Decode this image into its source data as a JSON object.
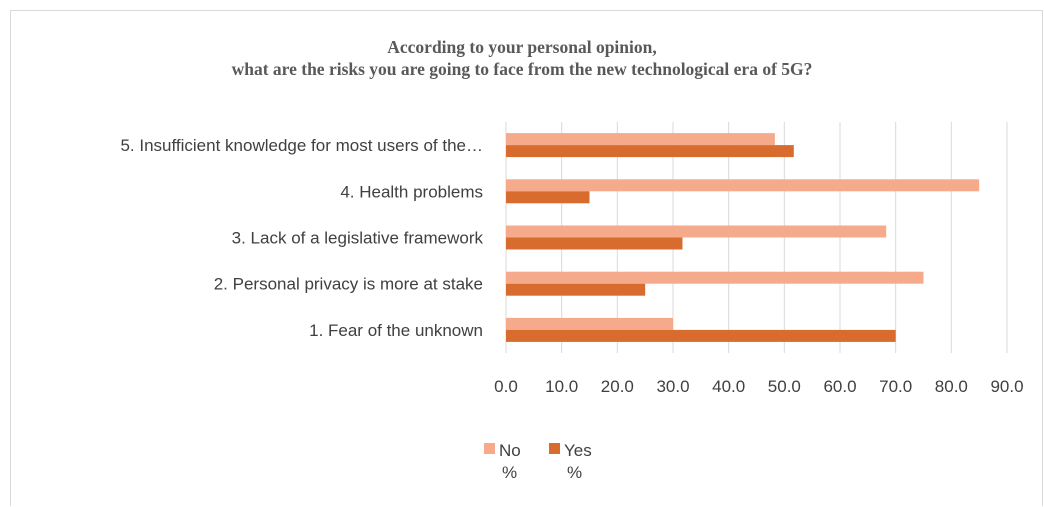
{
  "chart_data": {
    "type": "bar",
    "orientation": "horizontal",
    "title_line1": "According to your personal opinion,",
    "title_line2": "what are the risks you are going to face from the new technological era of 5G?",
    "categories": [
      "5. Insufficient knowledge for most users of the…",
      "4. Health problems",
      "3. Lack of a legislative framework",
      "2. Personal privacy is more at stake",
      "1. Fear of the unknown"
    ],
    "series": [
      {
        "name": "No %",
        "legend_line1": "No",
        "legend_line2": "%",
        "color": "#f4aa8b",
        "values": [
          48.3,
          85.0,
          68.3,
          75.0,
          30.0
        ]
      },
      {
        "name": "Yes %",
        "legend_line1": "Yes",
        "legend_line2": "%",
        "color": "#d86c2e",
        "values": [
          51.7,
          15.0,
          31.7,
          25.0,
          70.0
        ]
      }
    ],
    "xlim": [
      0,
      90
    ],
    "x_ticks": [
      "0.0",
      "10.0",
      "20.0",
      "30.0",
      "40.0",
      "50.0",
      "60.0",
      "70.0",
      "80.0",
      "90.0"
    ],
    "grid": true,
    "legend_position": "bottom"
  }
}
